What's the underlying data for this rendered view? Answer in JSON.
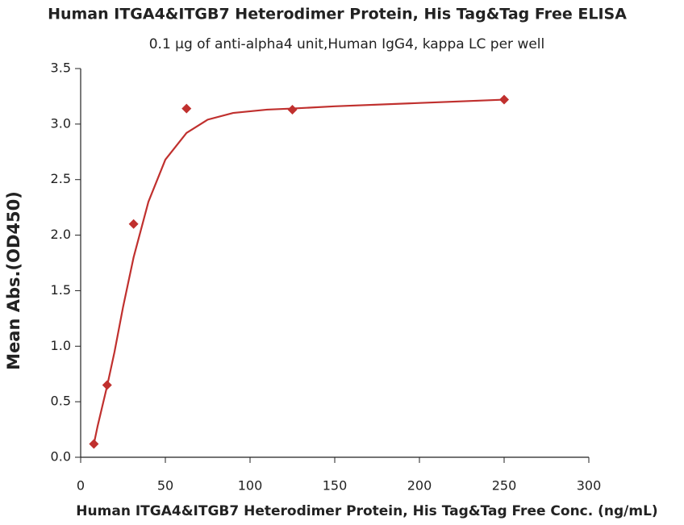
{
  "chart_data": {
    "type": "scatter",
    "title": "Human ITGA4&ITGB7 Heterodimer Protein, His Tag&Tag Free ELISA",
    "subtitle": "0.1 μg of anti-alpha4 unit,Human IgG4, kappa LC per well",
    "x_label": "Human ITGA4&ITGB7 Heterodimer Protein, His Tag&Tag Free Conc. (ng/mL)",
    "y_label": "Mean Abs.(OD450)",
    "xlim": [
      0,
      300
    ],
    "xticks": [
      0,
      50,
      100,
      150,
      200,
      250,
      300
    ],
    "ylim": [
      0,
      3.5
    ],
    "yticks": [
      {
        "value": 0,
        "label": "0.0"
      },
      0.5,
      {
        "value": 1,
        "label": "1.0"
      },
      1.5,
      {
        "value": 2,
        "label": "2.0"
      },
      2.5,
      {
        "value": 3,
        "label": "3.0"
      },
      3.5
    ],
    "grid": false,
    "series": [
      {
        "color": "#c0302e",
        "marker": "diamond",
        "x": [
          7.8,
          15.6,
          31.25,
          62.5,
          125,
          250
        ],
        "values": [
          0.12,
          0.65,
          2.1,
          3.14,
          3.13,
          3.22
        ]
      },
      {
        "color": "#c0302e",
        "marker": "line",
        "x": [
          7.8,
          10,
          15.6,
          20,
          25,
          31.25,
          40,
          50,
          62.5,
          75,
          90,
          110,
          125,
          150,
          200,
          250
        ],
        "values": [
          0.12,
          0.28,
          0.64,
          0.95,
          1.35,
          1.8,
          2.3,
          2.68,
          2.92,
          3.04,
          3.1,
          3.13,
          3.14,
          3.16,
          3.19,
          3.22
        ]
      }
    ]
  }
}
